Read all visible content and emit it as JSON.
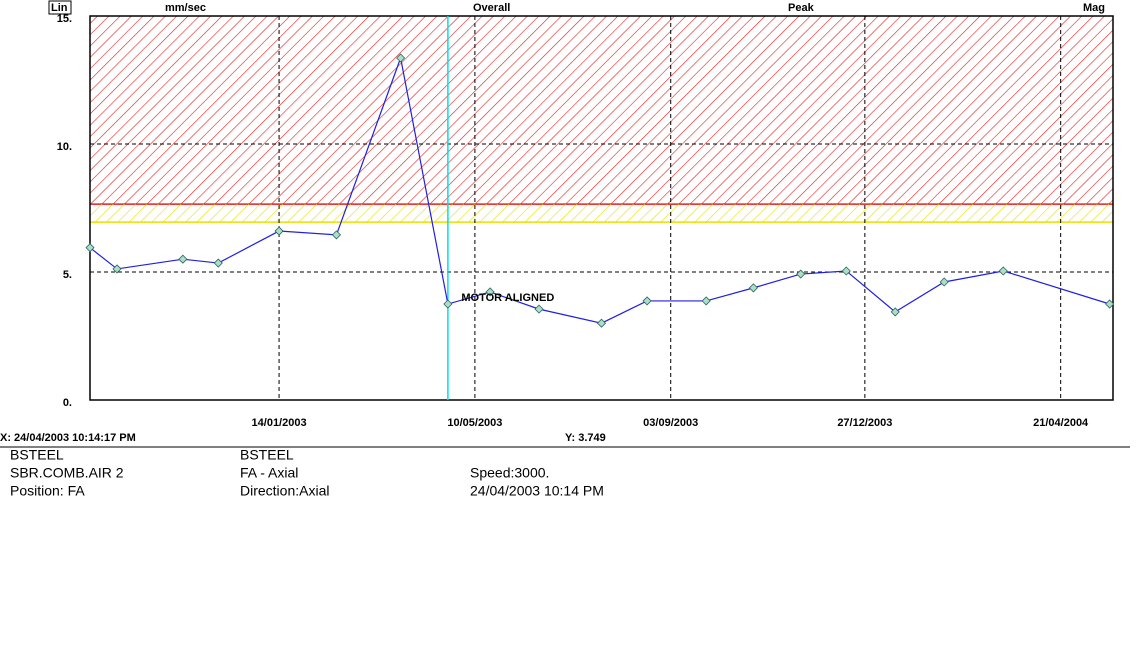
{
  "chart_data": {
    "type": "line",
    "scale_label": "Lin",
    "unit": "mm/sec",
    "measure": "Overall",
    "detector": "Peak",
    "display": "Mag",
    "xlim": [
      "24/09/2002",
      "22/05/2004"
    ],
    "xticks": [
      "14/01/2003",
      "10/05/2003",
      "03/09/2003",
      "27/12/2003",
      "21/04/2004"
    ],
    "ylim": [
      0,
      15
    ],
    "yticks": [
      {
        "value": 0,
        "label": "0."
      },
      {
        "value": 5,
        "label": "5."
      },
      {
        "value": 10,
        "label": "10."
      },
      {
        "value": 15,
        "label": "15."
      }
    ],
    "grid": true,
    "alarm_zones": [
      {
        "from": 7.65,
        "to": 15,
        "color": "#e02020"
      },
      {
        "from": 6.95,
        "to": 7.65,
        "color": "#e8e000"
      }
    ],
    "series": [
      {
        "color": "#2020e0",
        "marker_color": "#a8e0c8",
        "x": [
          "24/09/2002",
          "10/10/2002",
          "18/11/2002",
          "09/12/2002",
          "14/01/2003",
          "17/02/2003",
          "27/03/2003",
          "24/04/2003",
          "19/05/2003",
          "17/06/2003",
          "24/07/2003",
          "20/08/2003",
          "24/09/2003",
          "22/10/2003",
          "19/11/2003",
          "16/12/2003",
          "14/01/2004",
          "12/02/2004",
          "18/03/2004",
          "20/05/2004"
        ],
        "values": [
          5.95,
          5.12,
          5.5,
          5.35,
          6.6,
          6.45,
          13.36,
          3.749,
          4.22,
          3.55,
          3.0,
          3.87,
          3.87,
          4.38,
          4.92,
          5.04,
          3.44,
          4.61,
          5.04,
          3.75
        ]
      }
    ],
    "annotations": [
      {
        "text": "MOTOR ALIGNED",
        "x": "02/05/2003",
        "y": 3.98
      }
    ],
    "cursor": {
      "x_label": "X: 24/04/2003 10:14:17 PM",
      "y_label": "Y: 3.749",
      "color": "#00e0e8"
    }
  },
  "info": {
    "rows": [
      [
        "BSTEEL",
        "BSTEEL",
        ""
      ],
      [
        "SBR.COMB.AIR 2",
        " FA - Axial",
        "Speed:3000."
      ],
      [
        "Position: FA",
        "Direction:Axial",
        "24/04/2003 10:14 PM"
      ]
    ]
  }
}
